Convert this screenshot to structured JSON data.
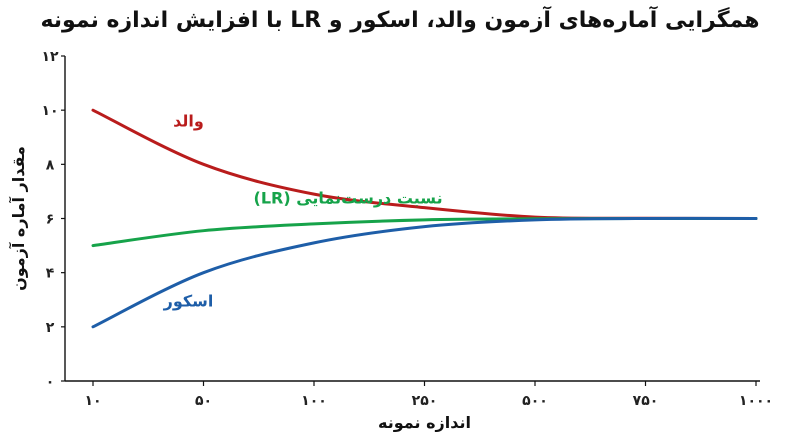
{
  "title": "همگرایی آماره‌های آزمون والد، اسکور و LR با افزایش اندازه نمونه",
  "chart_data": {
    "type": "line",
    "title": "همگرایی آماره‌های آزمون والد، اسکور و LR با افزایش اندازه نمونه",
    "xlabel": "اندازه نمونه",
    "ylabel": "مقدار آماره آزمون",
    "x_ticks": [
      "۱۰",
      "۵۰",
      "۱۰۰",
      "۲۵۰",
      "۵۰۰",
      "۷۵۰",
      "۱۰۰۰"
    ],
    "y_ticks": [
      "۰",
      "۲",
      "۴",
      "۶",
      "۸",
      "۱۰",
      "۱۲"
    ],
    "y_tick_values": [
      0,
      2,
      4,
      6,
      8,
      10,
      12
    ],
    "ylim": [
      0,
      12
    ],
    "x_scale": "categorical-evenly-spaced",
    "grid": false,
    "series": [
      {
        "name": "والد",
        "color": "#b91c1c",
        "values": [
          10.0,
          8.0,
          6.9,
          6.4,
          6.05,
          6.01,
          6.0
        ]
      },
      {
        "name": "نسبت درست‌نمایی (LR)",
        "color": "#16a34a",
        "values": [
          5.0,
          5.55,
          5.8,
          5.95,
          5.99,
          6.0,
          6.0
        ]
      },
      {
        "name": "اسکور",
        "color": "#1e5ea8",
        "values": [
          2.0,
          4.0,
          5.1,
          5.7,
          5.95,
          6.0,
          6.0
        ]
      }
    ]
  }
}
